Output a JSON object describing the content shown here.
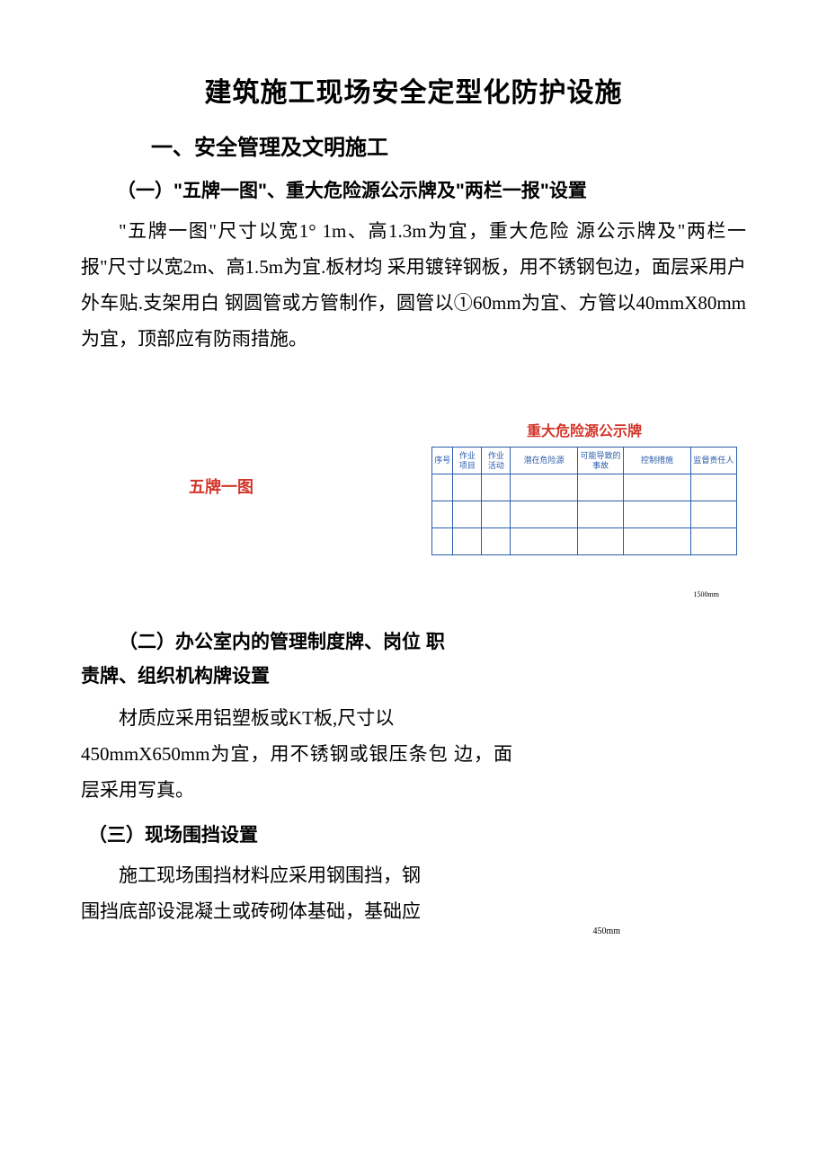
{
  "title": "建筑施工现场安全定型化防护设施",
  "section1": {
    "heading": "一、安全管理及文明施工",
    "sub1": {
      "heading": "（一）\"五牌一图\"、重大危险源公示牌及\"两栏一报\"设置",
      "body": "\"五牌一图\"尺寸以宽1° 1m、高1.3m为宜，重大危险 源公示牌及\"两栏一报\"尺寸以宽2m、高1.5m为宜.板材均 采用镀锌钢板，用不锈钢包边，面层采用户外车贴.支架用白 钢圆管或方管制作，圆管以①60mm为宜、方管以40mmX80mm 为宜，顶部应有防雨措施。"
    },
    "visual": {
      "left_label": "五牌一图",
      "table_title": "重大危险源公示牌",
      "table_headers": [
        "序号",
        "作业项目",
        "作业活动",
        "潜在危险源",
        "可能导致的事故",
        "控制措施",
        "监督责任人"
      ],
      "table_rows": 3,
      "border_color": "#2b5cab",
      "header_text_color": "#2b5cab",
      "title_color": "#d4352a"
    },
    "dim_side": "1500mm",
    "sub2": {
      "heading_line1": "（二）办公室内的管理制度牌、岗位 职",
      "heading_line2": "责牌、组织机构牌设置",
      "body_line1": "材质应采用铝塑板或KT板,尺寸以",
      "body_rest": "450mmX650mm为宜，用不锈钢或银压条包 边，面层采用写真。"
    },
    "sub3": {
      "heading": "（三）现场围挡设置",
      "body_line1": "施工现场围挡材料应采用钢围挡，钢",
      "body_line2": "围挡底部设混凝土或砖砌体基础，基础应"
    },
    "dim_450": "450mm"
  },
  "colors": {
    "text": "#000000",
    "red": "#d4352a",
    "blue": "#2b5cab",
    "background": "#ffffff"
  },
  "fonts": {
    "heading": "SimHei",
    "body": "SimSun",
    "title_size": 30,
    "heading_size": 24,
    "sub_heading_size": 21,
    "body_size": 21,
    "table_header_size": 9
  }
}
